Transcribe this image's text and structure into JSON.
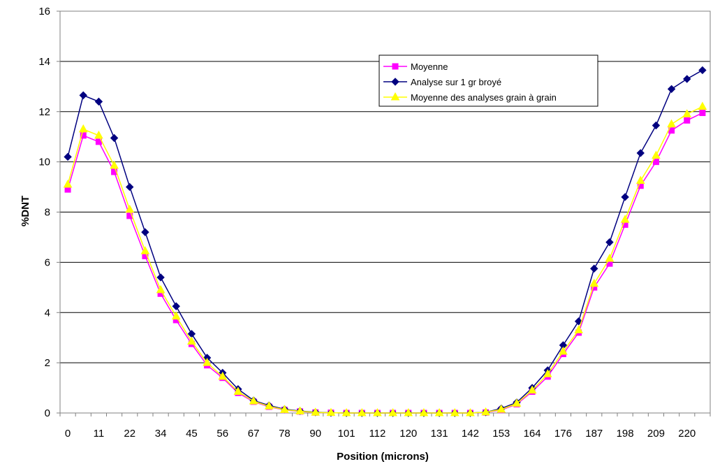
{
  "chart_data": {
    "type": "line",
    "title": "",
    "xlabel": "Position (microns)",
    "ylabel": "%DNT",
    "ylim": [
      0,
      16
    ],
    "yticks": [
      0,
      2,
      4,
      6,
      8,
      10,
      12,
      14,
      16
    ],
    "grid": "horizontal",
    "legend_position": "top-right",
    "x_tick_labels": [
      "0",
      "11",
      "22",
      "34",
      "45",
      "56",
      "67",
      "78",
      "90",
      "101",
      "112",
      "120",
      "131",
      "142",
      "153",
      "164",
      "176",
      "187",
      "198",
      "209",
      "220"
    ],
    "series": [
      {
        "name": "Moyenne",
        "color": "#FF00FF",
        "marker": "square",
        "values": [
          8.9,
          11.05,
          10.8,
          9.6,
          7.85,
          6.25,
          4.75,
          3.7,
          2.75,
          1.9,
          1.4,
          0.8,
          0.45,
          0.25,
          0.12,
          0.06,
          0.02,
          0.01,
          0.0,
          0.0,
          0.0,
          0.0,
          0.0,
          0.0,
          0.0,
          0.0,
          0.0,
          0.02,
          0.12,
          0.35,
          0.85,
          1.45,
          2.35,
          3.2,
          5.0,
          5.95,
          7.5,
          9.05,
          10.0,
          11.25,
          11.65,
          11.95
        ]
      },
      {
        "name": "Analyse sur 1 gr broyé",
        "color": "#000080",
        "marker": "diamond",
        "values": [
          10.2,
          12.65,
          12.4,
          10.95,
          9.0,
          7.2,
          5.4,
          4.25,
          3.15,
          2.2,
          1.6,
          0.95,
          0.5,
          0.3,
          0.15,
          0.08,
          0.03,
          0.01,
          0.0,
          0.0,
          0.0,
          0.0,
          0.0,
          0.0,
          0.0,
          0.0,
          0.0,
          0.03,
          0.18,
          0.42,
          1.0,
          1.7,
          2.7,
          3.65,
          5.75,
          6.8,
          8.6,
          10.35,
          11.45,
          12.9,
          13.3,
          13.65
        ]
      },
      {
        "name": "Moyenne des analyses grain à grain",
        "color": "#FFFF00",
        "marker": "triangle",
        "values": [
          9.1,
          11.3,
          11.05,
          9.85,
          8.1,
          6.45,
          4.9,
          3.85,
          2.85,
          2.0,
          1.45,
          0.85,
          0.47,
          0.27,
          0.13,
          0.07,
          0.02,
          0.01,
          0.0,
          0.0,
          0.0,
          0.0,
          0.0,
          0.0,
          0.0,
          0.0,
          0.0,
          0.03,
          0.14,
          0.38,
          0.9,
          1.55,
          2.45,
          3.3,
          5.15,
          6.15,
          7.7,
          9.25,
          10.25,
          11.5,
          11.9,
          12.2
        ]
      }
    ]
  }
}
